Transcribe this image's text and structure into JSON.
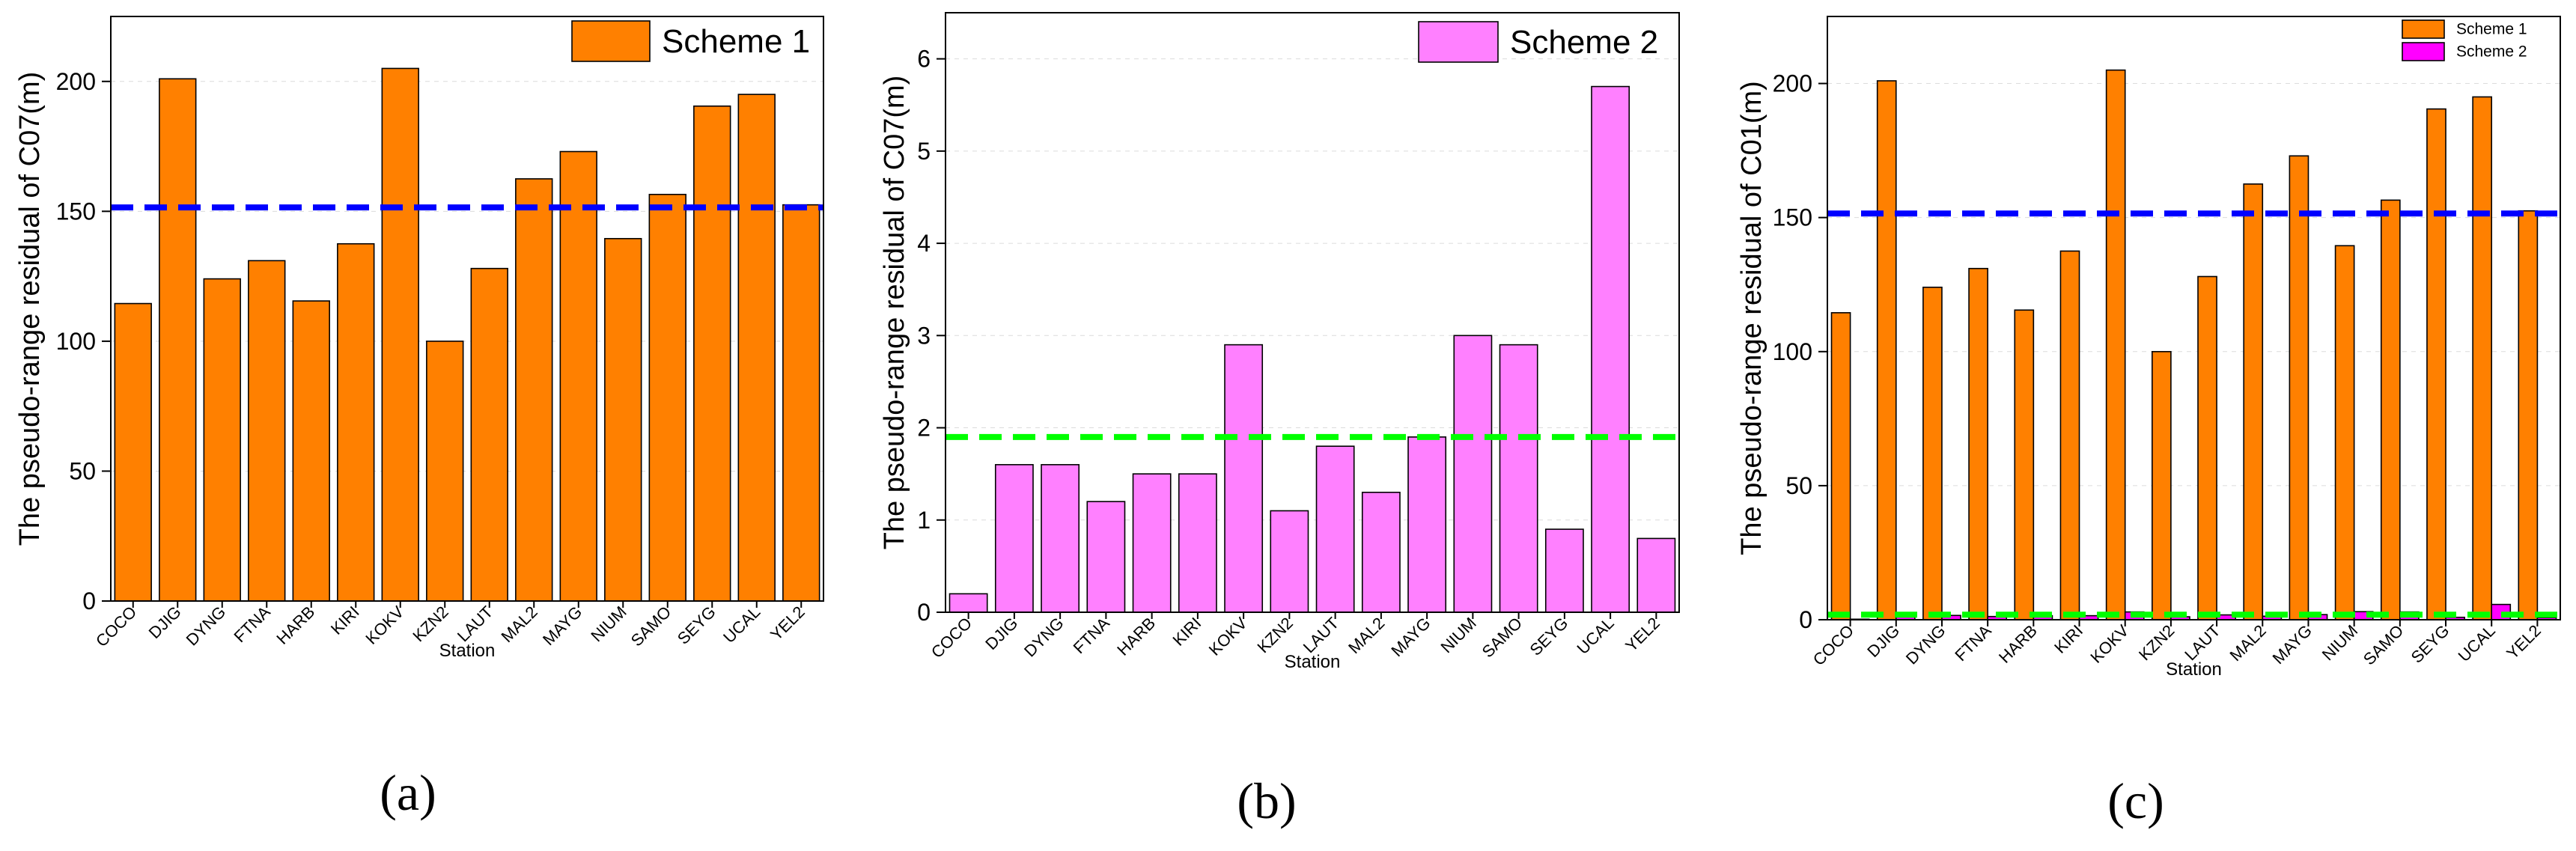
{
  "colors": {
    "scheme1": "#ff8000",
    "scheme2_b": "#ff80ff",
    "scheme2_c": "#ff00ff",
    "mean1": "#0000ff",
    "mean2": "#00ff00",
    "axis": "#000000",
    "grid": "#dcdcdc"
  },
  "chart_data": [
    {
      "type": "bar",
      "panel_label": "(a)",
      "ylabel": "The pseudo-range residual of C07(m)",
      "xlabel": "Station",
      "categories": [
        "COCO",
        "DJIG",
        "DYNG",
        "FTNA",
        "HARB",
        "KIRI",
        "KOKV",
        "KZN2",
        "LAUT",
        "MAL2",
        "MAYG",
        "NIUM",
        "SAMO",
        "SEYG",
        "UCAL",
        "YEL2"
      ],
      "series": [
        {
          "name": "Scheme 1",
          "color_key": "scheme1",
          "values": [
            114.5,
            201,
            124,
            131,
            115.5,
            137.5,
            205,
            100,
            128,
            162.5,
            173,
            139.5,
            156.5,
            190.5,
            195,
            152.5
          ]
        }
      ],
      "mean_lines": [
        {
          "value": 151.5,
          "color_key": "mean1"
        }
      ],
      "ylim": [
        0,
        225
      ],
      "yticks": [
        0,
        50,
        100,
        150,
        200
      ],
      "legend": [
        {
          "label": "Scheme 1",
          "color_key": "scheme1"
        }
      ],
      "legend_position": "top-right"
    },
    {
      "type": "bar",
      "panel_label": "(b)",
      "ylabel": "The pseudo-range residual of C07(m)",
      "xlabel": "Station",
      "categories": [
        "COCO",
        "DJIG",
        "DYNG",
        "FTNA",
        "HARB",
        "KIRI",
        "KOKV",
        "KZN2",
        "LAUT",
        "MAL2",
        "MAYG",
        "NIUM",
        "SAMO",
        "SEYG",
        "UCAL",
        "YEL2"
      ],
      "series": [
        {
          "name": "Scheme 2",
          "color_key": "scheme2_b",
          "values": [
            0.2,
            1.6,
            1.6,
            1.2,
            1.5,
            1.5,
            2.9,
            1.1,
            1.8,
            1.3,
            1.9,
            3.0,
            2.9,
            0.9,
            5.7,
            0.8
          ]
        }
      ],
      "mean_lines": [
        {
          "value": 1.9,
          "color_key": "mean2"
        }
      ],
      "ylim": [
        0,
        6.5
      ],
      "yticks": [
        0,
        1,
        2,
        3,
        4,
        5,
        6
      ],
      "legend": [
        {
          "label": "Scheme 2",
          "color_key": "scheme2_b"
        }
      ],
      "legend_position": "top-right"
    },
    {
      "type": "bar",
      "panel_label": "(c)",
      "ylabel": "The pseudo-range residual of C01(m)",
      "xlabel": "Station",
      "categories": [
        "COCO",
        "DJIG",
        "DYNG",
        "FTNA",
        "HARB",
        "KIRI",
        "KOKV",
        "KZN2",
        "LAUT",
        "MAL2",
        "MAYG",
        "NIUM",
        "SAMO",
        "SEYG",
        "UCAL",
        "YEL2"
      ],
      "series": [
        {
          "name": "Scheme 1",
          "color_key": "scheme1",
          "values": [
            114.5,
            201,
            124,
            131,
            115.5,
            137.5,
            205,
            100,
            128,
            162.5,
            173,
            139.5,
            156.5,
            190.5,
            195,
            152.5
          ]
        },
        {
          "name": "Scheme 2",
          "color_key": "scheme2_c",
          "values": [
            0.2,
            1.6,
            1.6,
            1.2,
            1.5,
            1.5,
            2.9,
            1.1,
            1.8,
            1.3,
            1.9,
            3.0,
            2.9,
            0.9,
            5.7,
            0.8
          ]
        }
      ],
      "mean_lines": [
        {
          "value": 151.5,
          "color_key": "mean1"
        },
        {
          "value": 1.9,
          "color_key": "mean2"
        }
      ],
      "ylim": [
        0,
        225
      ],
      "yticks": [
        0,
        50,
        100,
        150,
        200
      ],
      "legend": [
        {
          "label": "Scheme 1",
          "color_key": "scheme1"
        },
        {
          "label": "Scheme 2",
          "color_key": "scheme2_c"
        }
      ],
      "legend_position": "top-right"
    }
  ]
}
